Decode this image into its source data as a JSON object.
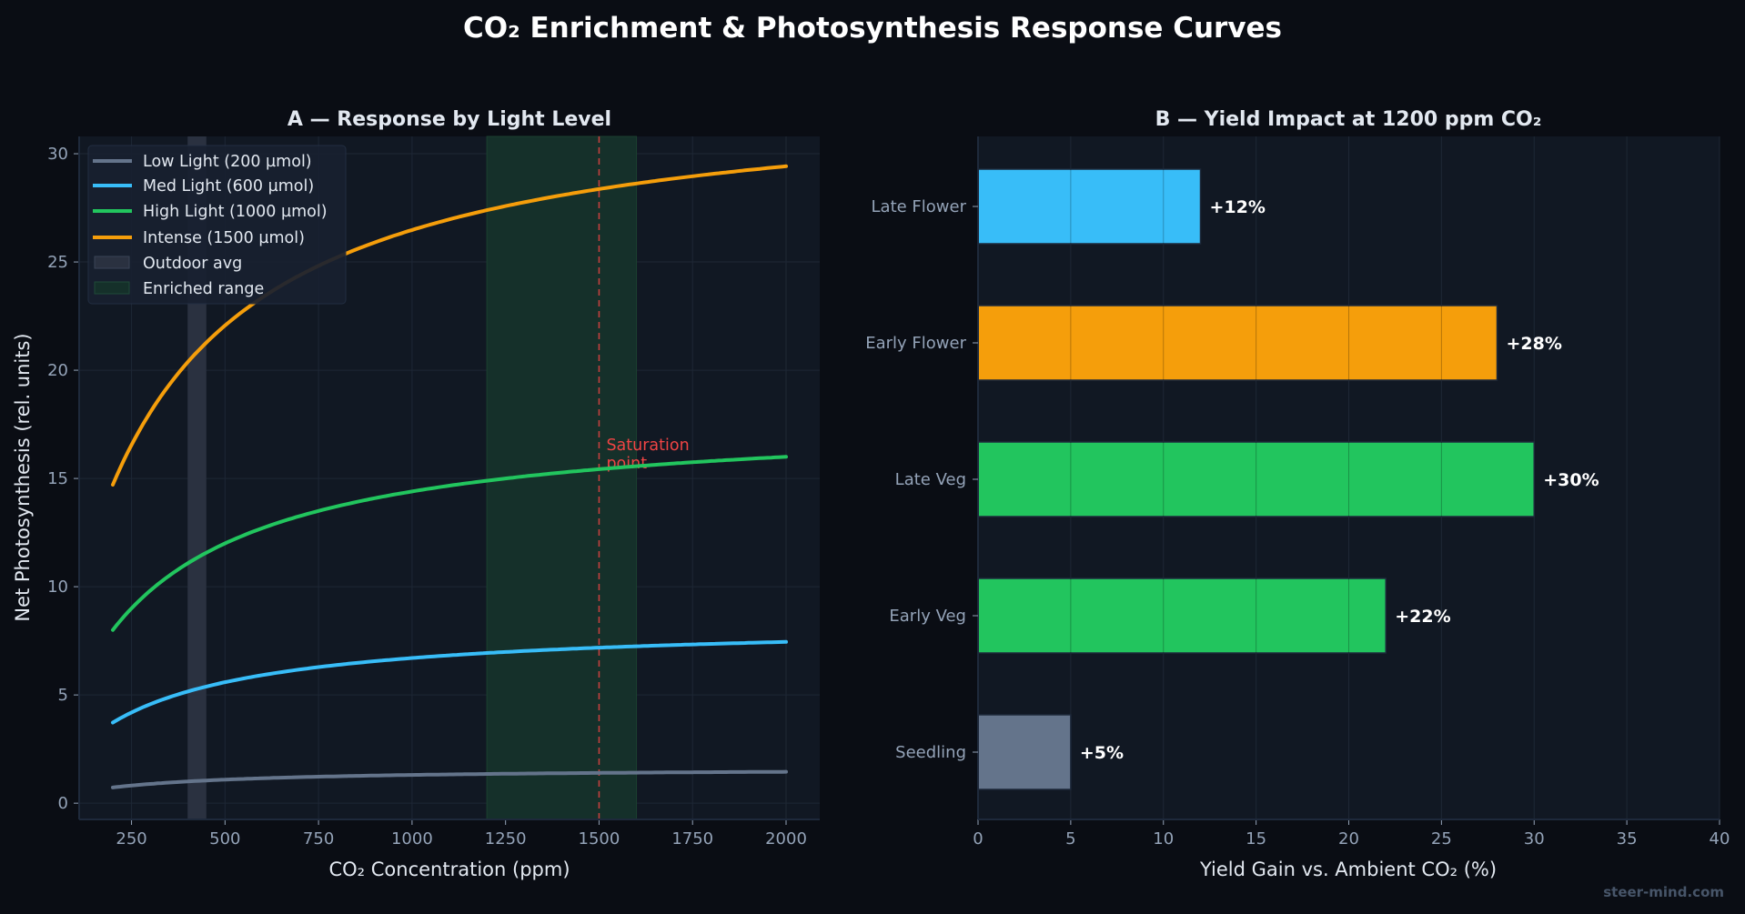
{
  "title": "CO₂ Enrichment & Photosynthesis Response Curves",
  "watermark": "steer-mind.com",
  "colors": {
    "background": "#0a0d14",
    "axes_bg": "#111823",
    "grid": "#1e2735",
    "low": "#64748b",
    "med": "#38bdf8",
    "high": "#22c55e",
    "intense": "#f59e0b",
    "saturation": "#ef4444"
  },
  "chart_data": [
    {
      "type": "line",
      "title": "A — Response by Light Level",
      "xlabel": "CO₂ Concentration (ppm)",
      "ylabel": "Net Photosynthesis (rel. units)",
      "xlim": [
        110,
        2090
      ],
      "ylim": [
        -0.75,
        30.8
      ],
      "xticks": [
        250,
        500,
        750,
        1000,
        1250,
        1500,
        1750,
        2000
      ],
      "yticks": [
        0,
        5,
        10,
        15,
        20,
        25,
        30
      ],
      "grid": true,
      "legend_placement": "top-left",
      "x": [
        200,
        300,
        400,
        500,
        600,
        800,
        1000,
        1200,
        1400,
        1600,
        1800,
        2000
      ],
      "series": [
        {
          "name": "Low Light (200 µmol)",
          "color": "#64748b",
          "values": [
            0.72,
            0.89,
            1.0,
            1.09,
            1.15,
            1.24,
            1.3,
            1.35,
            1.38,
            1.41,
            1.43,
            1.45
          ]
        },
        {
          "name": "Med Light (600 µmol)",
          "color": "#38bdf8",
          "values": [
            3.72,
            4.57,
            5.16,
            5.59,
            5.92,
            6.39,
            6.7,
            6.94,
            7.11,
            7.25,
            7.36,
            7.45
          ]
        },
        {
          "name": "High Light (1000 µmol)",
          "color": "#22c55e",
          "values": [
            8.0,
            9.82,
            11.08,
            12.0,
            12.71,
            13.71,
            14.4,
            14.9,
            15.27,
            15.57,
            15.8,
            16.0
          ]
        },
        {
          "name": "Intense (1500 µmol)",
          "color": "#f59e0b",
          "values": [
            14.71,
            18.05,
            20.37,
            22.07,
            23.36,
            25.22,
            26.48,
            27.39,
            28.07,
            28.62,
            29.07,
            29.42
          ]
        }
      ],
      "spans": [
        {
          "name": "Outdoor avg",
          "x0": 400,
          "x1": 450,
          "color": "#2a3140"
        },
        {
          "name": "Enriched range",
          "x0": 1200,
          "x1": 1600,
          "color": "#15302a"
        }
      ],
      "vline": {
        "x": 1500,
        "label": "Saturation point",
        "label_lines": [
          "Saturation",
          "point"
        ],
        "label_y": 16.3,
        "color": "#ef4444"
      }
    },
    {
      "type": "bar",
      "orientation": "horizontal",
      "title": "B — Yield Impact at 1200 ppm CO₂",
      "xlabel": "Yield Gain vs. Ambient CO₂ (%)",
      "xlim": [
        0,
        40
      ],
      "xticks": [
        0,
        5,
        10,
        15,
        20,
        25,
        30,
        35,
        40
      ],
      "grid": true,
      "categories": [
        "Seedling",
        "Early Veg",
        "Late Veg",
        "Early Flower",
        "Late Flower"
      ],
      "values": [
        5,
        22,
        30,
        28,
        12
      ],
      "data_labels": [
        "+5%",
        "+22%",
        "+30%",
        "+28%",
        "+12%"
      ],
      "bar_colors": [
        "#64748b",
        "#22c55e",
        "#22c55e",
        "#f59e0b",
        "#38bdf8"
      ]
    }
  ]
}
